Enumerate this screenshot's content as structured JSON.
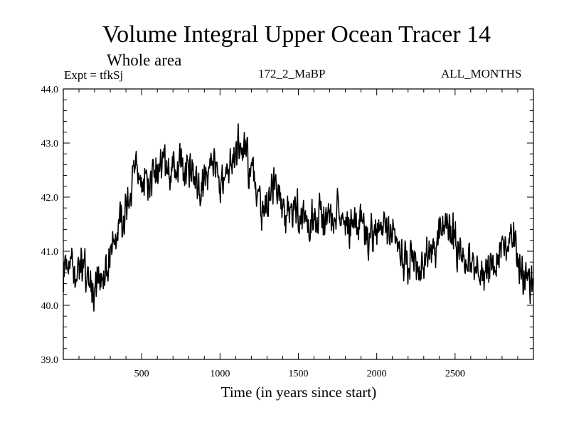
{
  "header": {
    "title": "Volume Integral Upper Ocean Tracer 14",
    "subtitle": "Whole area",
    "experiment": "Expt = tfkSj",
    "run_id": "172_2_MaBP",
    "period": "ALL_MONTHS"
  },
  "chart_data": {
    "type": "line",
    "title": "Volume Integral Upper Ocean Tracer 14",
    "xlabel": "Time (in years since start)",
    "ylabel": "",
    "xlim": [
      0,
      3000
    ],
    "ylim": [
      39.0,
      44.0
    ],
    "x_ticks": [
      500,
      1000,
      1500,
      2000,
      2500
    ],
    "y_ticks": [
      "39.0",
      "40.0",
      "41.0",
      "42.0",
      "43.0",
      "44.0"
    ],
    "series": [
      {
        "name": "Tracer 14",
        "x": [
          0,
          25,
          50,
          75,
          100,
          125,
          150,
          175,
          200,
          225,
          250,
          275,
          300,
          325,
          350,
          375,
          400,
          425,
          450,
          475,
          500,
          525,
          550,
          575,
          600,
          625,
          650,
          675,
          700,
          725,
          750,
          775,
          800,
          825,
          850,
          875,
          900,
          925,
          950,
          975,
          1000,
          1025,
          1050,
          1075,
          1100,
          1125,
          1150,
          1175,
          1200,
          1225,
          1250,
          1275,
          1300,
          1325,
          1350,
          1375,
          1400,
          1425,
          1450,
          1475,
          1500,
          1525,
          1550,
          1575,
          1600,
          1625,
          1650,
          1675,
          1700,
          1725,
          1750,
          1775,
          1800,
          1825,
          1850,
          1875,
          1900,
          1925,
          1950,
          1975,
          2000,
          2025,
          2050,
          2075,
          2100,
          2125,
          2150,
          2175,
          2200,
          2225,
          2250,
          2275,
          2300,
          2325,
          2350,
          2375,
          2400,
          2425,
          2450,
          2475,
          2500,
          2525,
          2550,
          2575,
          2600,
          2625,
          2650,
          2675,
          2700,
          2725,
          2750,
          2775,
          2800,
          2825,
          2850,
          2875,
          2900,
          2925,
          2950,
          2975,
          3000
        ],
        "values": [
          40.6,
          40.85,
          40.8,
          40.7,
          40.75,
          40.7,
          40.6,
          40.5,
          40.3,
          40.6,
          40.65,
          40.6,
          40.9,
          41.2,
          41.4,
          41.6,
          41.8,
          42.1,
          42.3,
          42.3,
          42.25,
          42.3,
          42.2,
          42.35,
          42.5,
          42.6,
          42.55,
          42.5,
          42.55,
          42.6,
          42.6,
          42.55,
          42.5,
          42.45,
          42.3,
          42.1,
          42.35,
          42.4,
          42.5,
          42.35,
          42.1,
          42.35,
          42.5,
          42.65,
          42.9,
          42.95,
          42.85,
          42.75,
          42.4,
          42.1,
          41.95,
          41.8,
          41.9,
          42.1,
          42.2,
          42.0,
          41.8,
          41.7,
          41.75,
          41.85,
          41.8,
          41.65,
          41.5,
          41.6,
          41.7,
          41.65,
          41.55,
          41.6,
          41.55,
          41.5,
          41.7,
          41.7,
          41.55,
          41.45,
          41.5,
          41.55,
          41.4,
          41.3,
          41.2,
          41.2,
          41.3,
          41.4,
          41.5,
          41.45,
          41.3,
          41.1,
          40.95,
          40.85,
          40.8,
          40.9,
          40.75,
          40.6,
          40.6,
          40.85,
          41.0,
          41.1,
          41.3,
          41.45,
          41.4,
          41.3,
          41.2,
          41.05,
          40.85,
          40.75,
          40.65,
          40.6,
          40.55,
          40.6,
          40.7,
          40.8,
          40.9,
          41.0,
          41.05,
          41.1,
          41.2,
          41.3,
          40.8,
          40.6,
          40.5,
          40.45,
          40.4
        ]
      }
    ]
  }
}
